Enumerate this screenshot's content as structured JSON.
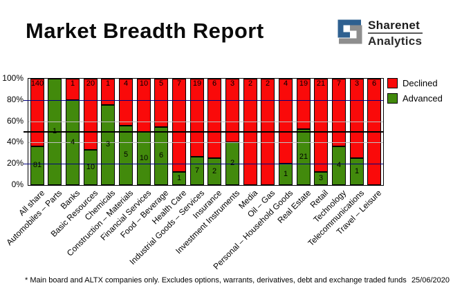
{
  "header": {
    "title": "Market Breadth Report",
    "logo": {
      "line1": "Sharenet",
      "line2": "Analytics",
      "mark_blue": "#2e6090",
      "mark_gray": "#8e8e8e"
    }
  },
  "chart_data": {
    "type": "bar",
    "subtype": "stacked-100-percent",
    "title": "Market Breadth Report",
    "categories": [
      "All share",
      "Automobiles – Parts",
      "Banks",
      "Basic Resources",
      "Chemicals",
      "Construction – Materials",
      "Financial Services",
      "Food – Beverage",
      "Health Care",
      "Industrial Goods – Services",
      "Insurance",
      "Investment Instruments",
      "Media",
      "Oil – Gas",
      "Personal – Household Goods",
      "Real Estate",
      "Retail",
      "Technology",
      "Telecommunications",
      "Travel – Leisure"
    ],
    "series": [
      {
        "name": "Declined",
        "color": "#fa0a0a",
        "values": [
          140,
          0,
          1,
          20,
          1,
          4,
          10,
          5,
          7,
          19,
          6,
          3,
          2,
          2,
          4,
          19,
          21,
          7,
          3,
          6
        ]
      },
      {
        "name": "Advanced",
        "color": "#428a0c",
        "values": [
          81,
          1,
          4,
          10,
          3,
          5,
          10,
          6,
          1,
          7,
          2,
          2,
          0,
          0,
          1,
          21,
          3,
          4,
          1,
          0
        ]
      }
    ],
    "y_ticks": [
      {
        "label": "100%",
        "pct": 100
      },
      {
        "label": "80%",
        "pct": 80
      },
      {
        "label": "60%",
        "pct": 60
      },
      {
        "label": "40%",
        "pct": 40
      },
      {
        "label": "20%",
        "pct": 20
      },
      {
        "label": "0%",
        "pct": 0
      }
    ],
    "ylim": [
      0,
      100
    ],
    "grid": {
      "navy_pct": [
        80,
        20
      ],
      "gray_pct": [
        60,
        40
      ],
      "reference_pct": 50,
      "navy_color": "#000080",
      "gray_color": "#c0c0c0",
      "reference_color": "#000000"
    },
    "legend_position": "top-right"
  },
  "legend": {
    "items": [
      {
        "label": "Declined",
        "color": "#fa0a0a"
      },
      {
        "label": "Advanced",
        "color": "#428a0c"
      }
    ]
  },
  "footer": {
    "note": "* Main board and ALTX companies only. Excludes options, warrants, derivatives, debt and exchange traded funds",
    "date": "25/06/2020"
  }
}
